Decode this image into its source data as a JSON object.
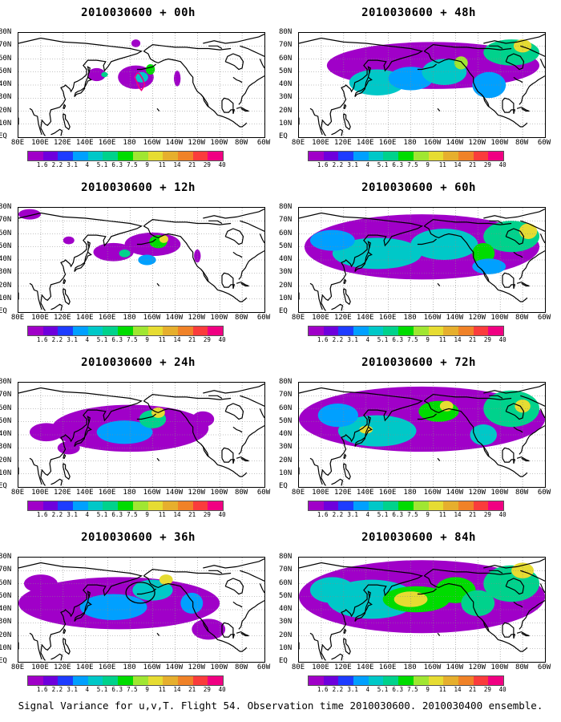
{
  "base_time": "2010030600",
  "panels": [
    {
      "title": "2010030600 + 00h",
      "lead": "00h"
    },
    {
      "title": "2010030600 + 48h",
      "lead": "48h"
    },
    {
      "title": "2010030600 + 12h",
      "lead": "12h"
    },
    {
      "title": "2010030600 + 60h",
      "lead": "60h"
    },
    {
      "title": "2010030600 + 24h",
      "lead": "24h"
    },
    {
      "title": "2010030600 + 72h",
      "lead": "72h"
    },
    {
      "title": "2010030600 + 36h",
      "lead": "36h"
    },
    {
      "title": "2010030600 + 84h",
      "lead": "84h"
    }
  ],
  "lat_labels": [
    "80N",
    "70N",
    "60N",
    "50N",
    "40N",
    "30N",
    "20N",
    "10N",
    "EQ"
  ],
  "lon_labels": [
    "80E",
    "100E",
    "120E",
    "140E",
    "160E",
    "180",
    "160W",
    "140W",
    "120W",
    "100W",
    "80W",
    "60W"
  ],
  "colorbar": {
    "levels": [
      "1.6",
      "2.2",
      "3.1",
      "4",
      "5.1",
      "6.3",
      "7.5",
      "9",
      "11",
      "14",
      "21",
      "29",
      "40"
    ],
    "colors": [
      "#a000c8",
      "#6e00dc",
      "#1e3cff",
      "#00a0ff",
      "#00c8c8",
      "#00d28c",
      "#00dc00",
      "#a0e632",
      "#e6dc32",
      "#e6af2d",
      "#f08228",
      "#fa3c3c",
      "#f00082"
    ]
  },
  "footer": "Signal Variance for u,v,T. Flight 54. Observation time 2010030600. 2010030400 ensemble.",
  "map_extent": {
    "lon_min": 80,
    "lon_max": 300,
    "lat_min": 0,
    "lat_max": 80
  }
}
